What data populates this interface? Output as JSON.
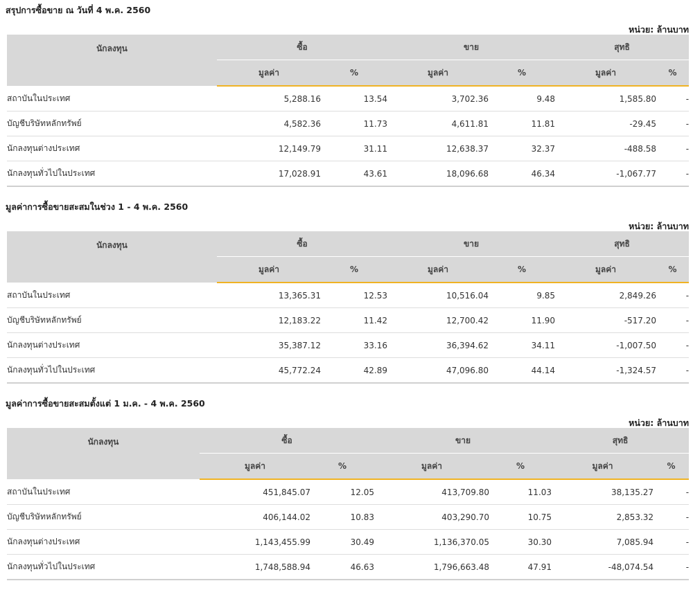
{
  "unit_label": "หน่วย: ล้านบาท",
  "headers": {
    "investor": "นักลงทุน",
    "buy": "ซื้อ",
    "sell": "ขาย",
    "net": "สุทธิ",
    "value": "มูลค่า",
    "percent": "%"
  },
  "colors": {
    "accent": "#f0b323",
    "header_bg": "#d8d8d8",
    "positive": "#3a8c1e",
    "negative": "#e01b1b"
  },
  "sections": [
    {
      "title": "สรุปการซื้อขาย ณ วันที่ 4 พ.ค. 2560",
      "rows": [
        {
          "name": "สถาบันในประเทศ",
          "buy_value": "5,288.16",
          "buy_pct": "13.54",
          "sell_value": "3,702.36",
          "sell_pct": "9.48",
          "net_value": "1,585.80",
          "net_pct": "-",
          "sign": "pos"
        },
        {
          "name": "บัญชีบริษัทหลักทรัพย์",
          "buy_value": "4,582.36",
          "buy_pct": "11.73",
          "sell_value": "4,611.81",
          "sell_pct": "11.81",
          "net_value": "-29.45",
          "net_pct": "-",
          "sign": "neg"
        },
        {
          "name": "นักลงทุนต่างประเทศ",
          "buy_value": "12,149.79",
          "buy_pct": "31.11",
          "sell_value": "12,638.37",
          "sell_pct": "32.37",
          "net_value": "-488.58",
          "net_pct": "-",
          "sign": "neg"
        },
        {
          "name": "นักลงทุนทั่วไปในประเทศ",
          "buy_value": "17,028.91",
          "buy_pct": "43.61",
          "sell_value": "18,096.68",
          "sell_pct": "46.34",
          "net_value": "-1,067.77",
          "net_pct": "-",
          "sign": "neg"
        }
      ]
    },
    {
      "title": "มูลค่าการซื้อขายสะสมในช่วง 1 - 4 พ.ค. 2560",
      "rows": [
        {
          "name": "สถาบันในประเทศ",
          "buy_value": "13,365.31",
          "buy_pct": "12.53",
          "sell_value": "10,516.04",
          "sell_pct": "9.85",
          "net_value": "2,849.26",
          "net_pct": "-",
          "sign": "pos"
        },
        {
          "name": "บัญชีบริษัทหลักทรัพย์",
          "buy_value": "12,183.22",
          "buy_pct": "11.42",
          "sell_value": "12,700.42",
          "sell_pct": "11.90",
          "net_value": "-517.20",
          "net_pct": "-",
          "sign": "neg"
        },
        {
          "name": "นักลงทุนต่างประเทศ",
          "buy_value": "35,387.12",
          "buy_pct": "33.16",
          "sell_value": "36,394.62",
          "sell_pct": "34.11",
          "net_value": "-1,007.50",
          "net_pct": "-",
          "sign": "neg"
        },
        {
          "name": "นักลงทุนทั่วไปในประเทศ",
          "buy_value": "45,772.24",
          "buy_pct": "42.89",
          "sell_value": "47,096.80",
          "sell_pct": "44.14",
          "net_value": "-1,324.57",
          "net_pct": "-",
          "sign": "neg"
        }
      ]
    },
    {
      "title": "มูลค่าการซื้อขายสะสมตั้งแต่ 1 ม.ค. - 4 พ.ค. 2560",
      "rows": [
        {
          "name": "สถาบันในประเทศ",
          "buy_value": "451,845.07",
          "buy_pct": "12.05",
          "sell_value": "413,709.80",
          "sell_pct": "11.03",
          "net_value": "38,135.27",
          "net_pct": "-",
          "sign": "pos"
        },
        {
          "name": "บัญชีบริษัทหลักทรัพย์",
          "buy_value": "406,144.02",
          "buy_pct": "10.83",
          "sell_value": "403,290.70",
          "sell_pct": "10.75",
          "net_value": "2,853.32",
          "net_pct": "-",
          "sign": "pos"
        },
        {
          "name": "นักลงทุนต่างประเทศ",
          "buy_value": "1,143,455.99",
          "buy_pct": "30.49",
          "sell_value": "1,136,370.05",
          "sell_pct": "30.30",
          "net_value": "7,085.94",
          "net_pct": "-",
          "sign": "pos"
        },
        {
          "name": "นักลงทุนทั่วไปในประเทศ",
          "buy_value": "1,748,588.94",
          "buy_pct": "46.63",
          "sell_value": "1,796,663.48",
          "sell_pct": "47.91",
          "net_value": "-48,074.54",
          "net_pct": "-",
          "sign": "neg"
        }
      ]
    }
  ]
}
